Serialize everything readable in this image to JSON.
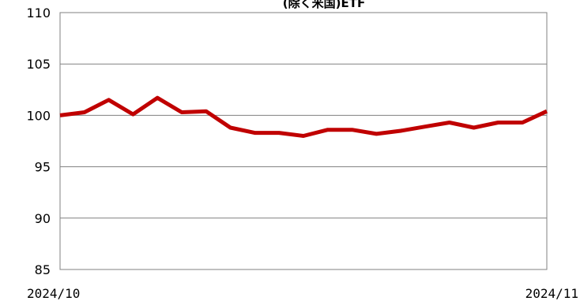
{
  "chart_data": {
    "type": "line",
    "title": "(除く米国)ETF",
    "xlabel": "",
    "ylabel": "",
    "ylim": [
      85,
      110
    ],
    "yticks": [
      "85",
      "90",
      "95",
      "100",
      "105",
      "110"
    ],
    "x_tick_labels": [
      "2024/10",
      "2024/11"
    ],
    "grid": true,
    "legend": "none",
    "series": [
      {
        "color": "#c00000",
        "values": [
          100.0,
          100.3,
          101.5,
          100.1,
          101.7,
          100.3,
          100.4,
          98.8,
          98.3,
          98.3,
          98.0,
          98.6,
          98.6,
          98.2,
          98.5,
          98.9,
          99.3,
          98.8,
          99.3,
          99.3,
          100.4
        ]
      }
    ]
  }
}
